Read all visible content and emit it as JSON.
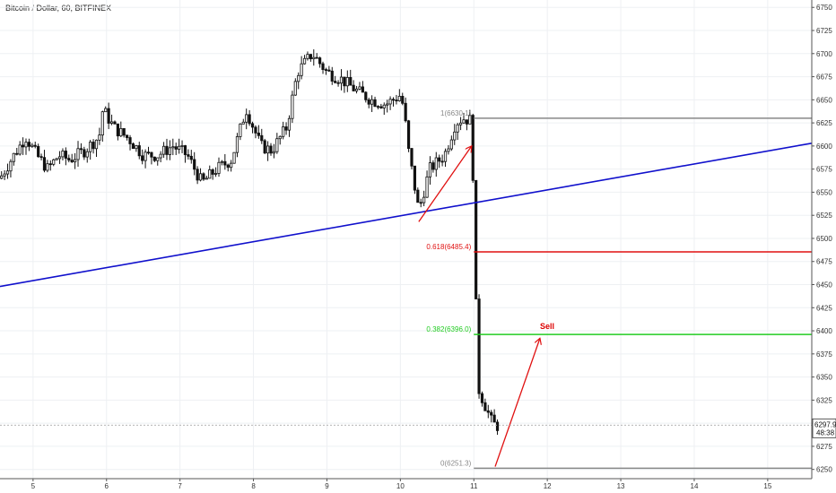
{
  "header": {
    "title": "Bitcoin / Dollar, 60, BITFINEX"
  },
  "price_tag": {
    "price": "6297.9",
    "countdown": "48:38"
  },
  "chart_data": {
    "type": "candlestick",
    "symbol": "Bitcoin / Dollar",
    "interval": "60",
    "exchange": "BITFINEX",
    "x_ticks": [
      "5",
      "6",
      "7",
      "8",
      "9",
      "10",
      "11",
      "12",
      "13",
      "14",
      "15"
    ],
    "y_ticks": [
      6250,
      6275,
      6300,
      6325,
      6350,
      6375,
      6400,
      6425,
      6450,
      6475,
      6500,
      6525,
      6550,
      6575,
      6600,
      6625,
      6650,
      6675,
      6700,
      6725,
      6750
    ],
    "ylim": [
      6240,
      6758
    ],
    "xlim": [
      4.55,
      15.6
    ],
    "price_path": [
      [
        4.55,
        6565
      ],
      [
        4.7,
        6585
      ],
      [
        4.9,
        6610
      ],
      [
        5.05,
        6590
      ],
      [
        5.2,
        6575
      ],
      [
        5.35,
        6590
      ],
      [
        5.5,
        6585
      ],
      [
        5.7,
        6595
      ],
      [
        5.9,
        6610
      ],
      [
        5.95,
        6640
      ],
      [
        6.1,
        6620
      ],
      [
        6.3,
        6608
      ],
      [
        6.5,
        6590
      ],
      [
        6.7,
        6590
      ],
      [
        6.9,
        6600
      ],
      [
        7.1,
        6590
      ],
      [
        7.3,
        6560
      ],
      [
        7.5,
        6575
      ],
      [
        7.7,
        6585
      ],
      [
        7.9,
        6640
      ],
      [
        8.1,
        6600
      ],
      [
        8.25,
        6595
      ],
      [
        8.45,
        6620
      ],
      [
        8.6,
        6680
      ],
      [
        8.8,
        6700
      ],
      [
        9.0,
        6680
      ],
      [
        9.2,
        6672
      ],
      [
        9.4,
        6660
      ],
      [
        9.6,
        6650
      ],
      [
        9.8,
        6645
      ],
      [
        10.0,
        6655
      ],
      [
        10.05,
        6640
      ],
      [
        10.1,
        6600
      ],
      [
        10.25,
        6530
      ],
      [
        10.4,
        6575
      ],
      [
        10.6,
        6590
      ],
      [
        10.75,
        6625
      ],
      [
        10.85,
        6630
      ],
      [
        10.95,
        6628
      ],
      [
        11.0,
        6550
      ],
      [
        11.05,
        6340
      ],
      [
        11.2,
        6310
      ],
      [
        11.25,
        6300
      ],
      [
        11.35,
        6296
      ]
    ],
    "series": [
      {
        "name": "",
        "type": "trendline",
        "color": "#1010cc",
        "points": [
          [
            4.55,
            6448
          ],
          [
            15.6,
            6603
          ]
        ]
      }
    ],
    "fibonacci": {
      "range": [
        11.0,
        15.6
      ],
      "levels": [
        {
          "label": "1(6630.1)",
          "value": 6630.1,
          "color": "#888888"
        },
        {
          "label": "0.618(6485.4)",
          "value": 6485.4,
          "color": "#e01010"
        },
        {
          "label": "0.382(6396.0)",
          "value": 6396.0,
          "color": "#22cc22"
        },
        {
          "label": "0(6251.3)",
          "value": 6251.3,
          "color": "#888888"
        }
      ]
    },
    "arrows": [
      {
        "color": "#e01010",
        "from": [
          10.25,
          6518
        ],
        "to": [
          10.97,
          6600
        ]
      },
      {
        "color": "#e01010",
        "from": [
          11.29,
          6253
        ],
        "to": [
          11.9,
          6392
        ]
      }
    ],
    "annotations": [
      {
        "text": "Sell",
        "color": "#dd0000",
        "x": 11.9,
        "y": 6402
      }
    ],
    "last_price": 6297.9
  }
}
